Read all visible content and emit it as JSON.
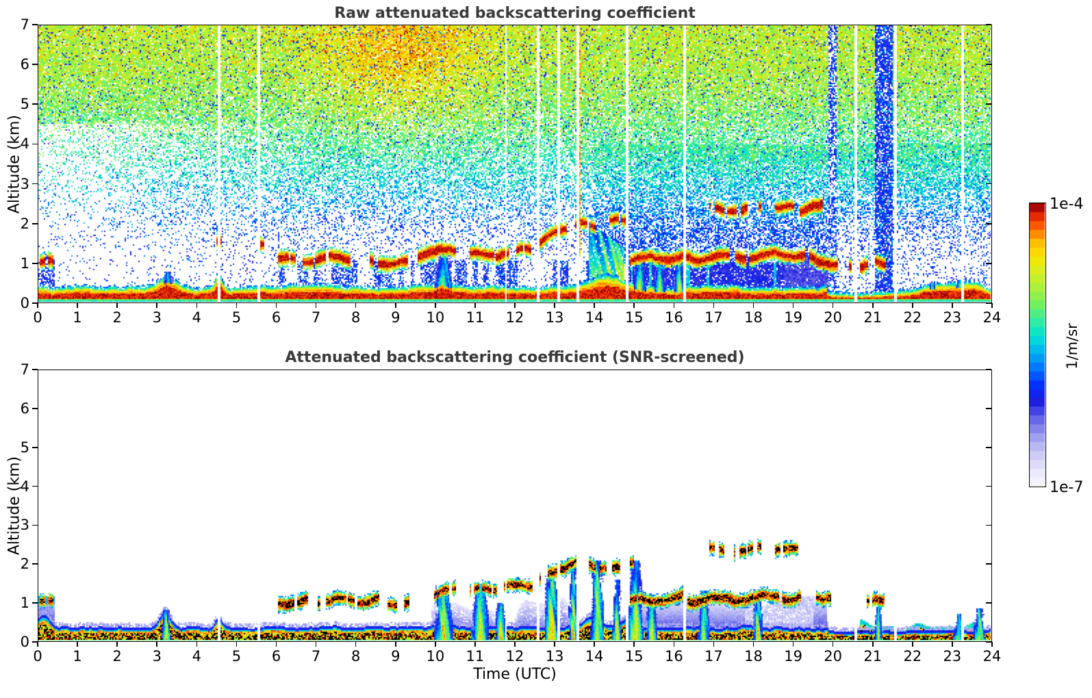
{
  "figure": {
    "background": "#ffffff",
    "title_color": "#3a3a3a",
    "axis_color": "#000000"
  },
  "panels": [
    {
      "id": "raw",
      "title": "Raw attenuated backscattering coefficient",
      "ylabel": "Altitude (km)",
      "xlabel": "",
      "x_ticks": [
        0,
        1,
        2,
        3,
        4,
        5,
        6,
        7,
        8,
        9,
        10,
        11,
        12,
        13,
        14,
        15,
        16,
        17,
        18,
        19,
        20,
        21,
        22,
        23,
        24
      ],
      "y_ticks": [
        0,
        1,
        2,
        3,
        4,
        5,
        6,
        7
      ]
    },
    {
      "id": "screened",
      "title": "Attenuated backscattering coefficient (SNR-screened)",
      "ylabel": "Altitude (km)",
      "xlabel": "Time (UTC)",
      "x_ticks": [
        0,
        1,
        2,
        3,
        4,
        5,
        6,
        7,
        8,
        9,
        10,
        11,
        12,
        13,
        14,
        15,
        16,
        17,
        18,
        19,
        20,
        21,
        22,
        23,
        24
      ],
      "y_ticks": [
        0,
        1,
        2,
        3,
        4,
        5,
        6,
        7
      ]
    }
  ],
  "colorbar": {
    "max_label": "1e-4",
    "min_label": "1e-7",
    "label": "1/m/sr",
    "levels": 32,
    "stops": [
      [
        0.0,
        "#f8f8ff"
      ],
      [
        0.06,
        "#e6e6fb"
      ],
      [
        0.12,
        "#c6c6f6"
      ],
      [
        0.18,
        "#9a9af0"
      ],
      [
        0.24,
        "#6262e8"
      ],
      [
        0.3,
        "#1a1ae0"
      ],
      [
        0.36,
        "#0030ff"
      ],
      [
        0.42,
        "#0078ff"
      ],
      [
        0.48,
        "#00b8f0"
      ],
      [
        0.53,
        "#00e2d2"
      ],
      [
        0.58,
        "#2eeca6"
      ],
      [
        0.64,
        "#6ef05e"
      ],
      [
        0.7,
        "#a8f03c"
      ],
      [
        0.76,
        "#d8ee1e"
      ],
      [
        0.81,
        "#f8e600"
      ],
      [
        0.86,
        "#ffbe00"
      ],
      [
        0.9,
        "#ff7c00"
      ],
      [
        0.94,
        "#f23c00"
      ],
      [
        0.97,
        "#d61000"
      ],
      [
        1.0,
        "#7a0000"
      ]
    ]
  },
  "chart_data": [
    {
      "type": "heatmap",
      "panel": "raw",
      "title": "Raw attenuated backscattering coefficient",
      "xlabel": "Time (UTC)",
      "ylabel": "Altitude (km)",
      "x_range": [
        0,
        24
      ],
      "y_range": [
        0,
        7
      ],
      "value_scale": "log",
      "value_min": 1e-07,
      "value_max": 0.0001,
      "value_units": "1/m/sr",
      "description": "Lidar raw attenuated backscatter: noisy speckle aloft (green/yellow/orange above ~4 km, blue below), dark-red boundary-layer aerosol 0-0.5 km all day, dark-red cloud streaks near 1-1.3 km from 06-20 UTC rising to ~2.1 km at 13-14 UTC, 2.3-2.4 km cloud 17-20 UTC, dense blue rain/noise columns near 20 and 21.3 UTC.",
      "features": {
        "gap_times_utc": [
          4.55,
          5.55,
          11.77,
          12.58,
          13.1,
          13.59,
          14.82,
          16.28,
          20.59,
          21.59,
          23.28
        ],
        "rain_columns": [
          {
            "t": [
              19.88,
              20.12
            ],
            "d": 0.55
          },
          {
            "t": [
              21.08,
              21.52
            ],
            "d": 0.78
          }
        ],
        "aerosol_base": 0.27,
        "aerosol_bumps": [
          {
            "t": 3.25,
            "w": 0.3,
            "a": 0.28
          },
          {
            "t": 4.55,
            "w": 0.1,
            "a": 0.3
          },
          {
            "t": 6.8,
            "w": 0.8,
            "a": 0.08
          },
          {
            "t": 10.15,
            "w": 0.25,
            "a": 0.22
          },
          {
            "t": 14.3,
            "w": 0.6,
            "a": 0.25
          },
          {
            "t": 22.8,
            "w": 0.8,
            "a": 0.45
          },
          {
            "t": 23.6,
            "w": 0.4,
            "a": 0.35
          }
        ],
        "cloud_layers": [
          {
            "t": [
              0.02,
              0.38
            ],
            "z": [
              1.0,
              1.0
            ],
            "frag": 0.35
          },
          {
            "t": [
              4.47,
              4.62
            ],
            "z": [
              1.45,
              1.45
            ],
            "frag": 0.2
          },
          {
            "t": [
              5.52,
              5.68
            ],
            "z": [
              1.4,
              1.4
            ],
            "frag": 0.45
          },
          {
            "t": [
              6.05,
              7.95
            ],
            "z": [
              1.05,
              1.1
            ],
            "frag": 0.32
          },
          {
            "t": [
              8.35,
              9.3
            ],
            "z": [
              1.0,
              1.0
            ],
            "frag": 0.3
          },
          {
            "t": [
              9.55,
              10.5
            ],
            "z": [
              1.2,
              1.3
            ],
            "frag": 0.08
          },
          {
            "t": [
              10.85,
              12.45
            ],
            "z": [
              1.15,
              1.3
            ],
            "frag": 0.22
          },
          {
            "t": [
              12.55,
              13.6
            ],
            "z": [
              1.45,
              2.05
            ],
            "frag": 0.3
          },
          {
            "t": [
              13.62,
              14.02
            ],
            "z": [
              1.95,
              1.9
            ],
            "frag": 0.2
          },
          {
            "t": [
              14.35,
              14.82
            ],
            "z": [
              2.0,
              2.05
            ],
            "frag": 0.3
          },
          {
            "t": [
              14.88,
              16.25
            ],
            "z": [
              1.05,
              1.15
            ],
            "frag": 0.08
          },
          {
            "t": [
              16.3,
              19.35
            ],
            "z": [
              1.1,
              1.2
            ],
            "frag": 0.15
          },
          {
            "t": [
              19.4,
              20.15
            ],
            "z": [
              1.1,
              0.95
            ],
            "frag": 0.2
          },
          {
            "t": [
              20.3,
              21.0
            ],
            "z": [
              0.95,
              0.95
            ],
            "frag": 0.6
          },
          {
            "t": [
              21.05,
              21.35
            ],
            "z": [
              1.0,
              1.0
            ],
            "frag": 0.4
          },
          {
            "t": [
              16.9,
              18.2
            ],
            "z": [
              2.35,
              2.35
            ],
            "frag": 0.35
          },
          {
            "t": [
              18.55,
              19.12
            ],
            "z": [
              2.35,
              2.35
            ],
            "frag": 0.3
          },
          {
            "t": [
              19.18,
              19.92
            ],
            "z": [
              2.3,
              2.42
            ],
            "frag": 0.3
          }
        ],
        "updrafts": [
          {
            "t": [
              9.98,
              10.42
            ],
            "z": 1.2
          },
          {
            "t": [
              3.1,
              3.4
            ],
            "z": 0.75
          },
          {
            "t": [
              15.0,
              15.3
            ],
            "z": 1.0
          },
          {
            "t": [
              15.5,
              15.8
            ],
            "z": 1.0
          },
          {
            "t": [
              16.0,
              16.3
            ],
            "z": 0.95
          },
          {
            "t": [
              22.4,
              22.6
            ],
            "z": 0.5
          },
          {
            "t": [
              23.1,
              23.35
            ],
            "z": 0.55
          }
        ],
        "orange_patch": {
          "t": 9.2,
          "st": 2.0,
          "z": 6.3,
          "sz": 1.7,
          "amp": 0.13
        },
        "red_column_t": 13.63,
        "virga": {
          "t": [
            13.85,
            14.75
          ],
          "z_top0": 2.05,
          "z_top1": 1.35
        }
      }
    },
    {
      "type": "heatmap",
      "panel": "screened",
      "title": "Attenuated backscattering coefficient (SNR-screened)",
      "xlabel": "Time (UTC)",
      "ylabel": "Altitude (km)",
      "x_range": [
        0,
        24
      ],
      "y_range": [
        0,
        7
      ],
      "value_scale": "log",
      "value_min": 1e-07,
      "value_max": 0.0001,
      "value_units": "1/m/sr",
      "description": "SNR-screened backscatter: white above ~2.5 km; black saturated cloud streaks with red/orange/yellow halos near 1-1.3 km (06-20 UTC) rising to ~2.2 km at 13-14 UTC and a 2.3-2.4 km layer 17-19.5 UTC; black/multicolour surface aerosol layer 0-0.4 km with cyan-blue fringe; deep-blue haze up to ~1.2 km 15-20 UTC; yellow/orange updraft columns 10-15 UTC; cyan bumpy mounds 21.5-24 UTC.",
      "features": {
        "gap_times_utc": [
          4.55,
          5.55,
          11.77,
          12.58,
          13.1,
          13.59,
          14.82,
          16.28,
          20.59,
          21.59,
          23.28
        ],
        "surface_base": 0.26,
        "surface_bumps": [
          {
            "t": 0.15,
            "w": 0.2,
            "a": 0.3
          },
          {
            "t": 3.2,
            "w": 0.18,
            "a": 0.4
          },
          {
            "t": 4.55,
            "w": 0.12,
            "a": 0.25
          },
          {
            "t": 10.15,
            "w": 0.2,
            "a": 0.2
          },
          {
            "t": 13.95,
            "w": 0.25,
            "a": 0.25
          },
          {
            "t": 14.8,
            "w": 0.2,
            "a": 0.2
          }
        ],
        "cloud_layers": [
          {
            "t": [
              0.02,
              0.38
            ],
            "z": [
              1.0,
              1.0
            ],
            "frag": 0.4
          },
          {
            "t": [
              3.05,
              3.3
            ],
            "z": [
              0.85,
              0.85
            ],
            "frag": 0.4
          },
          {
            "t": [
              6.05,
              7.0
            ],
            "z": [
              1.0,
              1.0
            ],
            "frag": 0.3
          },
          {
            "t": [
              7.05,
              8.6
            ],
            "z": [
              1.02,
              1.08
            ],
            "frag": 0.25
          },
          {
            "t": [
              8.8,
              9.35
            ],
            "z": [
              1.0,
              1.0
            ],
            "frag": 0.35
          },
          {
            "t": [
              9.95,
              10.5
            ],
            "z": [
              1.2,
              1.3
            ],
            "frag": 0.2
          },
          {
            "t": [
              10.85,
              11.4
            ],
            "z": [
              1.3,
              1.3
            ],
            "frag": 0.3
          },
          {
            "t": [
              11.45,
              12.45
            ],
            "z": [
              1.35,
              1.45
            ],
            "frag": 0.35
          },
          {
            "t": [
              12.55,
              13.6
            ],
            "z": [
              1.5,
              2.15
            ],
            "frag": 0.35
          },
          {
            "t": [
              13.85,
              14.65
            ],
            "z": [
              2.0,
              1.85
            ],
            "frag": 0.45
          },
          {
            "t": [
              14.9,
              15.35
            ],
            "z": [
              2.1,
              2.1
            ],
            "frag": 0.5
          },
          {
            "t": [
              14.88,
              16.3
            ],
            "z": [
              1.0,
              1.15
            ],
            "frag": 0.12
          },
          {
            "t": [
              16.35,
              19.2
            ],
            "z": [
              1.05,
              1.15
            ],
            "frag": 0.18
          },
          {
            "t": [
              19.4,
              20.15
            ],
            "z": [
              1.2,
              1.1
            ],
            "frag": 0.3
          },
          {
            "t": [
              20.85,
              21.3
            ],
            "z": [
              1.0,
              1.0
            ],
            "frag": 0.55
          },
          {
            "t": [
              16.9,
              18.2
            ],
            "z": [
              2.35,
              2.35
            ],
            "frag": 0.4
          },
          {
            "t": [
              18.55,
              19.15
            ],
            "z": [
              2.35,
              2.35
            ],
            "frag": 0.35
          }
        ],
        "updrafts": [
          {
            "t": [
              9.95,
              10.45
            ],
            "z": 1.45
          },
          {
            "t": [
              10.9,
              11.35
            ],
            "z": 1.5
          },
          {
            "t": [
              11.5,
              11.8
            ],
            "z": 1.0
          },
          {
            "t": [
              12.75,
              13.1
            ],
            "z": 1.9
          },
          {
            "t": [
              13.35,
              13.6
            ],
            "z": 2.0
          },
          {
            "t": [
              13.9,
              14.25
            ],
            "z": 2.1
          },
          {
            "t": [
              14.45,
              14.7
            ],
            "z": 1.6
          },
          {
            "t": [
              14.85,
              15.25
            ],
            "z": 2.1
          },
          {
            "t": [
              15.3,
              15.6
            ],
            "z": 1.2
          },
          {
            "t": [
              16.6,
              16.9
            ],
            "z": 1.3
          },
          {
            "t": [
              18.0,
              18.25
            ],
            "z": 1.3
          },
          {
            "t": [
              3.1,
              3.35
            ],
            "z": 0.8
          },
          {
            "t": [
              21.05,
              21.25
            ],
            "z": 0.9
          },
          {
            "t": [
              23.05,
              23.3
            ],
            "z": 0.7
          },
          {
            "t": [
              23.55,
              23.85
            ],
            "z": 0.85
          }
        ],
        "blue_region": {
          "t": [
            14.88,
            19.85
          ]
        },
        "patchy_blue": {
          "t": [
            9.9,
            14.88
          ]
        },
        "left_blob": {
          "t_end": 0.42,
          "z_top": 1.15
        },
        "mounds": {
          "t": [
            20.7,
            24.0
          ]
        }
      }
    }
  ]
}
